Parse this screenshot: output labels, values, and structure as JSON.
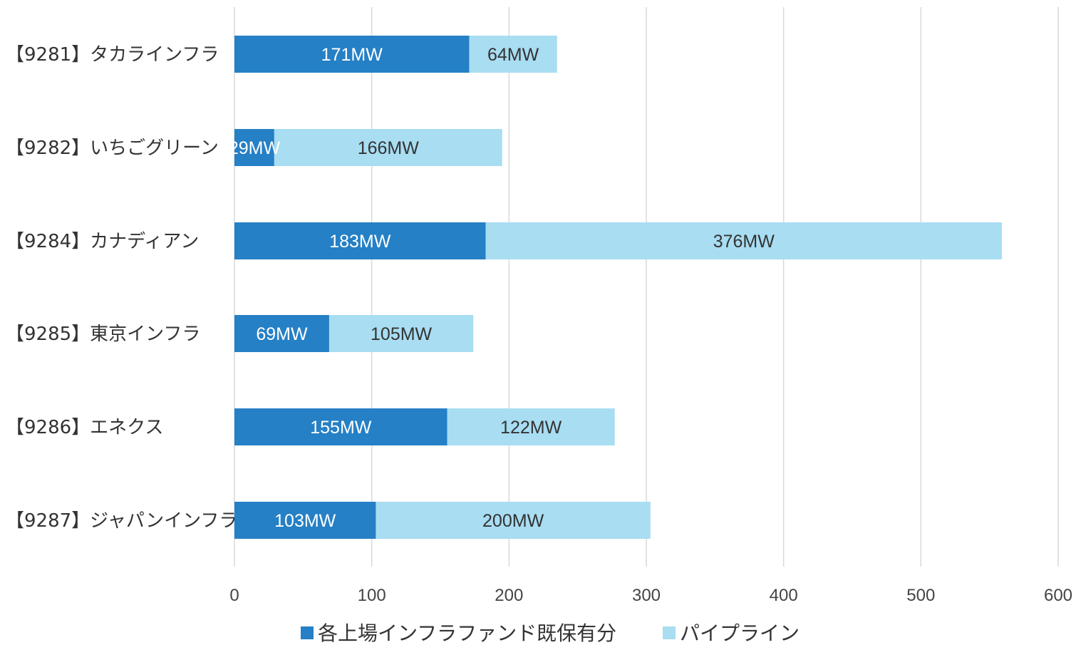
{
  "chart_data": {
    "type": "bar",
    "orientation": "horizontal",
    "stacked": true,
    "categories": [
      "【9281】タカラインフラ",
      "【9282】いちごグリーン",
      "【9284】カナディアン",
      "【9285】東京インフラ",
      "【9286】エネクス",
      "【9287】ジャパンインフラ"
    ],
    "series": [
      {
        "name": "各上場インフラファンド既保有分",
        "color": "#2580C6",
        "label_color": "#ffffff",
        "values": [
          171,
          29,
          183,
          69,
          155,
          103
        ],
        "labels": [
          "171MW",
          "29MW",
          "183MW",
          "69MW",
          "155MW",
          "103MW"
        ]
      },
      {
        "name": "パイプライン",
        "color": "#A8DDF2",
        "label_color": "#333333",
        "values": [
          64,
          166,
          376,
          105,
          122,
          200
        ],
        "labels": [
          "64MW",
          "166MW",
          "376MW",
          "105MW",
          "122MW",
          "200MW"
        ]
      }
    ],
    "xlim": [
      0,
      600
    ],
    "xticks": [
      0,
      100,
      200,
      300,
      400,
      500,
      600
    ],
    "xtick_labels": [
      "0",
      "100",
      "200",
      "300",
      "400",
      "500",
      "600"
    ],
    "grid": true,
    "legend_position": "bottom",
    "title": "",
    "xlabel": "",
    "ylabel": ""
  }
}
